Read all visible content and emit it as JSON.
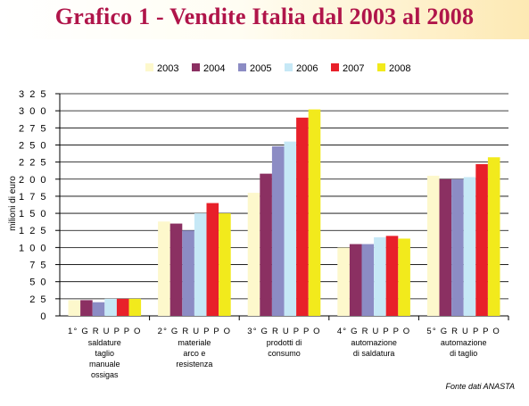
{
  "header": {
    "title": "Grafico 1 - Vendite Italia dal 2003 al 2008"
  },
  "source_note": "Fonte dati ANASTA",
  "colors": {
    "title": "#b0154a",
    "grid": "#000000"
  },
  "chart_data": {
    "type": "bar",
    "title": "Grafico 1 - Vendite Italia dal 2003 al 2008",
    "ylabel": "milioni di euro",
    "xlabel": "",
    "ylim": [
      0,
      325
    ],
    "yticks": [
      "0",
      "2 5",
      "5 0",
      "7 5",
      "1 0 0",
      "1 2 5",
      "1 5 0",
      "1 7 5",
      "2 0 0",
      "2 2 5",
      "2 5 0",
      "2 7 5",
      "3 0 0",
      "3 2 5"
    ],
    "grid": true,
    "legend_position": "top",
    "categories": [
      {
        "title": "1° G R U P P O",
        "lines": [
          "saldature",
          "taglio",
          "manuale",
          "ossigas"
        ]
      },
      {
        "title": "2° G R U P P O",
        "lines": [
          "materiale",
          "arco e",
          "resistenza"
        ]
      },
      {
        "title": "3° G R U P P O",
        "lines": [
          "prodotti di",
          "consumo"
        ]
      },
      {
        "title": "4° G R U P P O",
        "lines": [
          "automazione",
          "di saldatura"
        ]
      },
      {
        "title": "5° G R U P P O",
        "lines": [
          "automazione",
          "di taglio"
        ]
      }
    ],
    "series": [
      {
        "name": "2003",
        "color": "#fdf8cc",
        "values": [
          23,
          138,
          180,
          100,
          205
        ]
      },
      {
        "name": "2004",
        "color": "#8b3062",
        "values": [
          23,
          135,
          208,
          105,
          200
        ]
      },
      {
        "name": "2005",
        "color": "#8c8cc4",
        "values": [
          20,
          125,
          248,
          105,
          200
        ]
      },
      {
        "name": "2006",
        "color": "#c6e8f6",
        "values": [
          25,
          150,
          255,
          115,
          203
        ]
      },
      {
        "name": "2007",
        "color": "#e8202a",
        "values": [
          25,
          165,
          290,
          117,
          222
        ]
      },
      {
        "name": "2008",
        "color": "#f2ea1c",
        "values": [
          25,
          150,
          302,
          113,
          232
        ]
      }
    ]
  }
}
